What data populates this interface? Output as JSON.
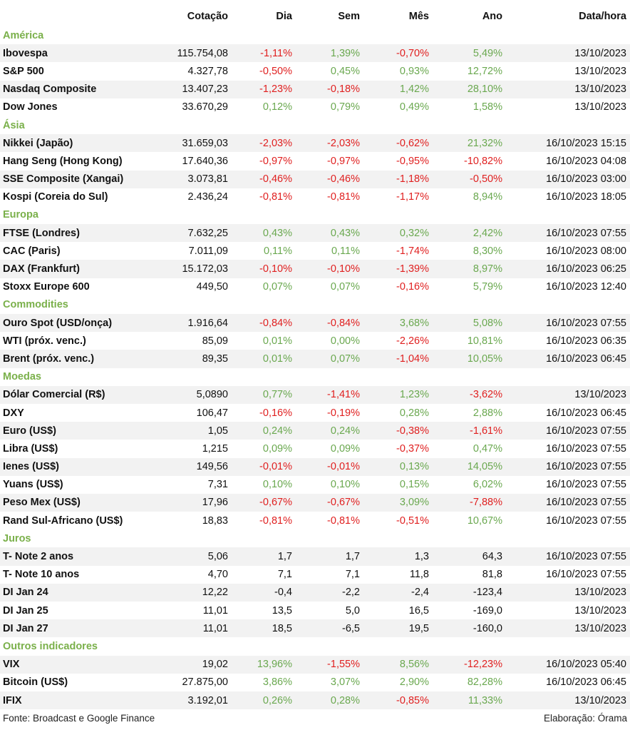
{
  "header": {
    "cotacao": "Cotação",
    "dia": "Dia",
    "sem": "Sem",
    "mes": "Mês",
    "ano": "Ano",
    "datahora": "Data/hora"
  },
  "sections": [
    {
      "title": "América",
      "rows": [
        {
          "name": "Ibovespa",
          "cot": "115.754,08",
          "dia": "-1,11%",
          "sem": "1,39%",
          "mes": "-0,70%",
          "ano": "5,49%",
          "dt": "13/10/2023"
        },
        {
          "name": "S&P 500",
          "cot": "4.327,78",
          "dia": "-0,50%",
          "sem": "0,45%",
          "mes": "0,93%",
          "ano": "12,72%",
          "dt": "13/10/2023"
        },
        {
          "name": "Nasdaq Composite",
          "cot": "13.407,23",
          "dia": "-1,23%",
          "sem": "-0,18%",
          "mes": "1,42%",
          "ano": "28,10%",
          "dt": "13/10/2023"
        },
        {
          "name": "Dow Jones",
          "cot": "33.670,29",
          "dia": "0,12%",
          "sem": "0,79%",
          "mes": "0,49%",
          "ano": "1,58%",
          "dt": "13/10/2023"
        }
      ]
    },
    {
      "title": "Ásia",
      "rows": [
        {
          "name": "Nikkei (Japão)",
          "cot": "31.659,03",
          "dia": "-2,03%",
          "sem": "-2,03%",
          "mes": "-0,62%",
          "ano": "21,32%",
          "dt": "16/10/2023 15:15"
        },
        {
          "name": "Hang Seng (Hong Kong)",
          "cot": "17.640,36",
          "dia": "-0,97%",
          "sem": "-0,97%",
          "mes": "-0,95%",
          "ano": "-10,82%",
          "dt": "16/10/2023 04:08"
        },
        {
          "name": "SSE Composite (Xangai)",
          "cot": "3.073,81",
          "dia": "-0,46%",
          "sem": "-0,46%",
          "mes": "-1,18%",
          "ano": "-0,50%",
          "dt": "16/10/2023 03:00"
        },
        {
          "name": "Kospi (Coreia do Sul)",
          "cot": "2.436,24",
          "dia": "-0,81%",
          "sem": "-0,81%",
          "mes": "-1,17%",
          "ano": "8,94%",
          "dt": "16/10/2023 18:05"
        }
      ]
    },
    {
      "title": "Europa",
      "rows": [
        {
          "name": "FTSE (Londres)",
          "cot": "7.632,25",
          "dia": "0,43%",
          "sem": "0,43%",
          "mes": "0,32%",
          "ano": "2,42%",
          "dt": "16/10/2023 07:55"
        },
        {
          "name": "CAC (Paris)",
          "cot": "7.011,09",
          "dia": "0,11%",
          "sem": "0,11%",
          "mes": "-1,74%",
          "ano": "8,30%",
          "dt": "16/10/2023 08:00"
        },
        {
          "name": "DAX (Frankfurt)",
          "cot": "15.172,03",
          "dia": "-0,10%",
          "sem": "-0,10%",
          "mes": "-1,39%",
          "ano": "8,97%",
          "dt": "16/10/2023 06:25"
        },
        {
          "name": "Stoxx Europe 600",
          "cot": "449,50",
          "dia": "0,07%",
          "sem": "0,07%",
          "mes": "-0,16%",
          "ano": "5,79%",
          "dt": "16/10/2023 12:40"
        }
      ]
    },
    {
      "title": "Commodities",
      "rows": [
        {
          "name": "Ouro Spot (USD/onça)",
          "cot": "1.916,64",
          "dia": "-0,84%",
          "sem": "-0,84%",
          "mes": "3,68%",
          "ano": "5,08%",
          "dt": "16/10/2023 07:55"
        },
        {
          "name": "WTI (próx. venc.)",
          "cot": "85,09",
          "dia": "0,01%",
          "sem": "0,00%",
          "mes": "-2,26%",
          "ano": "10,81%",
          "dt": "16/10/2023 06:35"
        },
        {
          "name": "Brent (próx. venc.)",
          "cot": "89,35",
          "dia": "0,01%",
          "sem": "0,07%",
          "mes": "-1,04%",
          "ano": "10,05%",
          "dt": "16/10/2023 06:45"
        }
      ]
    },
    {
      "title": "Moedas",
      "rows": [
        {
          "name": "Dólar Comercial (R$)",
          "cot": "5,0890",
          "dia": "0,77%",
          "sem": "-1,41%",
          "mes": "1,23%",
          "ano": "-3,62%",
          "dt": "13/10/2023"
        },
        {
          "name": "DXY",
          "cot": "106,47",
          "dia": "-0,16%",
          "sem": "-0,19%",
          "mes": "0,28%",
          "ano": "2,88%",
          "dt": "16/10/2023 06:45"
        },
        {
          "name": "Euro (US$)",
          "cot": "1,05",
          "dia": "0,24%",
          "sem": "0,24%",
          "mes": "-0,38%",
          "ano": "-1,61%",
          "dt": "16/10/2023 07:55"
        },
        {
          "name": "Libra (US$)",
          "cot": "1,215",
          "dia": "0,09%",
          "sem": "0,09%",
          "mes": "-0,37%",
          "ano": "0,47%",
          "dt": "16/10/2023 07:55"
        },
        {
          "name": "Ienes (US$)",
          "cot": "149,56",
          "dia": "-0,01%",
          "sem": "-0,01%",
          "mes": "0,13%",
          "ano": "14,05%",
          "dt": "16/10/2023 07:55"
        },
        {
          "name": "Yuans (US$)",
          "cot": "7,31",
          "dia": "0,10%",
          "sem": "0,10%",
          "mes": "0,15%",
          "ano": "6,02%",
          "dt": "16/10/2023 07:55"
        },
        {
          "name": "Peso Mex (US$)",
          "cot": "17,96",
          "dia": "-0,67%",
          "sem": "-0,67%",
          "mes": "3,09%",
          "ano": "-7,88%",
          "dt": "16/10/2023 07:55"
        },
        {
          "name": "Rand Sul-Africano (US$)",
          "cot": "18,83",
          "dia": "-0,81%",
          "sem": "-0,81%",
          "mes": "-0,51%",
          "ano": "10,67%",
          "dt": "16/10/2023 07:55"
        }
      ]
    },
    {
      "title": "Juros",
      "rows": [
        {
          "name": "T- Note 2 anos",
          "cot": "5,06",
          "dia": "1,7",
          "sem": "1,7",
          "mes": "1,3",
          "ano": "64,3",
          "dt": "16/10/2023 07:55",
          "plain": true
        },
        {
          "name": "T- Note 10 anos",
          "cot": "4,70",
          "dia": "7,1",
          "sem": "7,1",
          "mes": "11,8",
          "ano": "81,8",
          "dt": "16/10/2023 07:55",
          "plain": true
        },
        {
          "name": "DI Jan 24",
          "cot": "12,22",
          "dia": "-0,4",
          "sem": "-2,2",
          "mes": "-2,4",
          "ano": "-123,4",
          "dt": "13/10/2023",
          "plain": true
        },
        {
          "name": "DI Jan 25",
          "cot": "11,01",
          "dia": "13,5",
          "sem": "5,0",
          "mes": "16,5",
          "ano": "-169,0",
          "dt": "13/10/2023",
          "plain": true
        },
        {
          "name": "DI Jan 27",
          "cot": "11,01",
          "dia": "18,5",
          "sem": "-6,5",
          "mes": "19,5",
          "ano": "-160,0",
          "dt": "13/10/2023",
          "plain": true
        }
      ]
    },
    {
      "title": "Outros indicadores",
      "rows": [
        {
          "name": "VIX",
          "cot": "19,02",
          "dia": "13,96%",
          "sem": "-1,55%",
          "mes": "8,56%",
          "ano": "-12,23%",
          "dt": "16/10/2023 05:40"
        },
        {
          "name": "Bitcoin (US$)",
          "cot": "27.875,00",
          "dia": "3,86%",
          "sem": "3,07%",
          "mes": "2,90%",
          "ano": "82,28%",
          "dt": "16/10/2023 06:45"
        },
        {
          "name": "IFIX",
          "cot": "3.192,01",
          "dia": "0,26%",
          "sem": "0,28%",
          "mes": "-0,85%",
          "ano": "11,33%",
          "dt": "13/10/2023"
        }
      ]
    }
  ],
  "footer": {
    "source": "Fonte: Broadcast e Google Finance",
    "credit": "Elaboração: Órama"
  },
  "colors": {
    "positive": "#6aa84f",
    "negative": "#e02020",
    "section": "#7ab04a",
    "stripe": "#f2f2f2"
  }
}
